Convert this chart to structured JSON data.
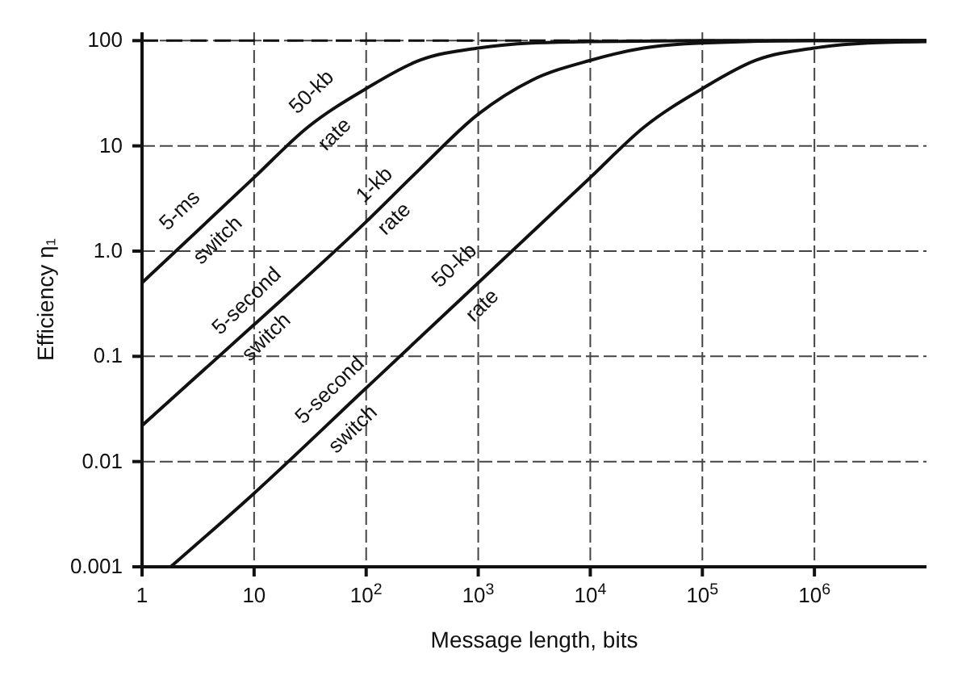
{
  "chart_data": {
    "type": "line",
    "xlabel": "Message length, bits",
    "ylabel": "Efficiency η₁",
    "log": "xy",
    "grid": true,
    "xlim": [
      1,
      10000000
    ],
    "ylim": [
      0.001,
      120
    ],
    "xticks": [
      1,
      10,
      {
        "value": 100,
        "label": "10$^{2}$"
      },
      {
        "value": 1000,
        "label": "10$^{3}$"
      },
      {
        "value": 10000,
        "label": "10$^{4}$"
      },
      {
        "value": 100000,
        "label": "10$^{5}$"
      },
      {
        "value": 1000000,
        "label": "10$^{6}$"
      }
    ],
    "yticks": [
      0.001,
      0.01,
      0.1,
      {
        "value": 1,
        "label": "1.0"
      },
      10,
      100
    ],
    "ref_lines": [
      {
        "axis": "y",
        "value": 100,
        "line_style": "dashed",
        "color": "#111111"
      }
    ],
    "series": [
      {
        "color": "#111111",
        "x": [
          1,
          10,
          30,
          100,
          300,
          1000,
          3000,
          10000,
          100000,
          10000000
        ],
        "values": [
          0.5,
          5,
          15,
          35,
          65,
          85,
          95,
          98,
          100,
          100
        ]
      },
      {
        "color": "#111111",
        "x": [
          1,
          10,
          100,
          300,
          1000,
          3000,
          10000,
          30000,
          100000,
          1000000,
          10000000
        ],
        "values": [
          0.022,
          0.2,
          1.9,
          6,
          20,
          42,
          65,
          85,
          95,
          100,
          100
        ]
      },
      {
        "color": "#111111",
        "x": [
          1.8,
          10,
          100,
          1000,
          10000,
          30000,
          100000,
          300000,
          1000000,
          3000000,
          10000000
        ],
        "values": [
          0.001,
          0.005,
          0.05,
          0.5,
          5,
          15,
          35,
          65,
          85,
          95,
          98
        ]
      }
    ],
    "annotations": [
      "5-ms",
      "switch",
      "50-kb",
      "rate",
      "1-kb",
      "rate",
      "5-second",
      "switch",
      "50-kb",
      "rate",
      "5-second",
      "switch"
    ]
  }
}
